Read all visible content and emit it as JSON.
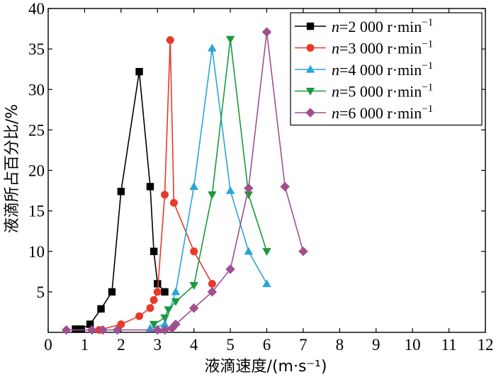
{
  "chart_data": {
    "type": "line",
    "title": "",
    "xlabel": "液滴速度/(m·s⁻¹)",
    "ylabel": "液滴所占百分比/%",
    "xlim": [
      0,
      12
    ],
    "ylim": [
      0,
      40
    ],
    "x_ticks": [
      "0",
      "1",
      "2",
      "3",
      "4",
      "5",
      "6",
      "7",
      "8",
      "9",
      "10",
      "11",
      "12"
    ],
    "y_ticks": [
      "5",
      "10",
      "15",
      "20",
      "25",
      "30",
      "35",
      "40"
    ],
    "grid": false,
    "legend_position": "top-right",
    "series": [
      {
        "name": "n=2 000 r·min⁻¹",
        "legend": {
          "prefix": "n",
          "middle": "=2 000 r·min",
          "sup": "−1"
        },
        "color": "#000000",
        "marker": "square",
        "points": [
          [
            0.75,
            0.4
          ],
          [
            0.9,
            0.4
          ],
          [
            1.15,
            1.0
          ],
          [
            1.45,
            2.9
          ],
          [
            1.75,
            5.0
          ],
          [
            2.0,
            17.4
          ],
          [
            2.5,
            32.2
          ],
          [
            2.8,
            18.0
          ],
          [
            2.9,
            10.0
          ],
          [
            3.0,
            6.0
          ],
          [
            3.2,
            5.0
          ]
        ]
      },
      {
        "name": "n=3 000 r·min⁻¹",
        "legend": {
          "prefix": "n",
          "middle": "=3 000 r·min",
          "sup": "−1"
        },
        "color": "#e8392a",
        "marker": "circle",
        "points": [
          [
            1.4,
            0.3
          ],
          [
            2.0,
            1.0
          ],
          [
            2.5,
            2.0
          ],
          [
            2.8,
            3.0
          ],
          [
            2.9,
            4.0
          ],
          [
            3.0,
            5.0
          ],
          [
            3.2,
            17.0
          ],
          [
            3.35,
            36.1
          ],
          [
            3.45,
            16.0
          ],
          [
            4.0,
            10.0
          ],
          [
            4.5,
            6.0
          ]
        ]
      },
      {
        "name": "n=4 000 r·min⁻¹",
        "legend": {
          "prefix": "n",
          "middle": "=4 000 r·min",
          "sup": "−1"
        },
        "color": "#27a4de",
        "marker": "triangle-up",
        "points": [
          [
            2.8,
            0.5
          ],
          [
            3.2,
            1.0
          ],
          [
            3.5,
            5.0
          ],
          [
            4.0,
            18.0
          ],
          [
            4.5,
            35.1
          ],
          [
            5.0,
            17.5
          ],
          [
            5.5,
            10.0
          ],
          [
            6.0,
            6.0
          ]
        ]
      },
      {
        "name": "n=5 000 r·min⁻¹",
        "legend": {
          "prefix": "n",
          "middle": "=5 000 r·min",
          "sup": "−1"
        },
        "color": "#1a9a3a",
        "marker": "triangle-down",
        "points": [
          [
            2.9,
            1.0
          ],
          [
            3.2,
            1.8
          ],
          [
            3.3,
            2.8
          ],
          [
            3.5,
            3.8
          ],
          [
            4.0,
            5.8
          ],
          [
            4.5,
            17.0
          ],
          [
            5.0,
            36.2
          ],
          [
            5.5,
            17.0
          ],
          [
            6.0,
            10.0
          ]
        ]
      },
      {
        "name": "n=6 000 r·min⁻¹",
        "legend": {
          "prefix": "n",
          "middle": "=6 000 r·min",
          "sup": "−1"
        },
        "color": "#a0508f",
        "marker": "diamond",
        "points": [
          [
            0.5,
            0.3
          ],
          [
            1.2,
            0.3
          ],
          [
            1.5,
            0.3
          ],
          [
            1.9,
            0.3
          ],
          [
            3.0,
            0.3
          ],
          [
            3.2,
            0.3
          ],
          [
            3.4,
            0.5
          ],
          [
            3.5,
            1.0
          ],
          [
            4.0,
            3.0
          ],
          [
            4.5,
            5.0
          ],
          [
            5.0,
            7.8
          ],
          [
            5.5,
            17.8
          ],
          [
            6.0,
            37.1
          ],
          [
            6.5,
            18.0
          ],
          [
            7.0,
            10.0
          ]
        ]
      }
    ]
  }
}
